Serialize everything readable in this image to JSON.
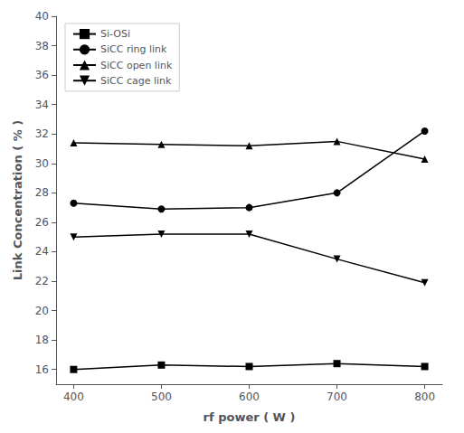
{
  "chart_data": {
    "type": "line",
    "x": [
      400,
      500,
      600,
      700,
      800
    ],
    "series": [
      {
        "name": "Si-OSi",
        "color": "#000000",
        "marker": "square",
        "values": [
          16.0,
          16.3,
          16.2,
          16.4,
          16.2
        ]
      },
      {
        "name": "SiCC ring link",
        "color": "#000000",
        "marker": "circle",
        "values": [
          27.3,
          26.9,
          27.0,
          28.0,
          32.2
        ]
      },
      {
        "name": "SiCC open link",
        "color": "#000000",
        "marker": "triangle_up",
        "values": [
          31.4,
          31.3,
          31.2,
          31.5,
          30.3
        ]
      },
      {
        "name": "SiCC cage link",
        "color": "#000000",
        "marker": "triangle_down",
        "values": [
          25.0,
          25.2,
          25.2,
          23.5,
          21.9
        ]
      }
    ],
    "xlabel": "rf power ( W )",
    "ylabel": "Link Concentration ( % )",
    "xlim": [
      380,
      820
    ],
    "ylim": [
      15,
      40
    ],
    "xticks": [
      400,
      500,
      600,
      700,
      800
    ],
    "yticks": [
      16,
      18,
      20,
      22,
      24,
      26,
      28,
      30,
      32,
      34,
      36,
      38,
      40
    ],
    "grid": false,
    "legend": "upper left"
  }
}
